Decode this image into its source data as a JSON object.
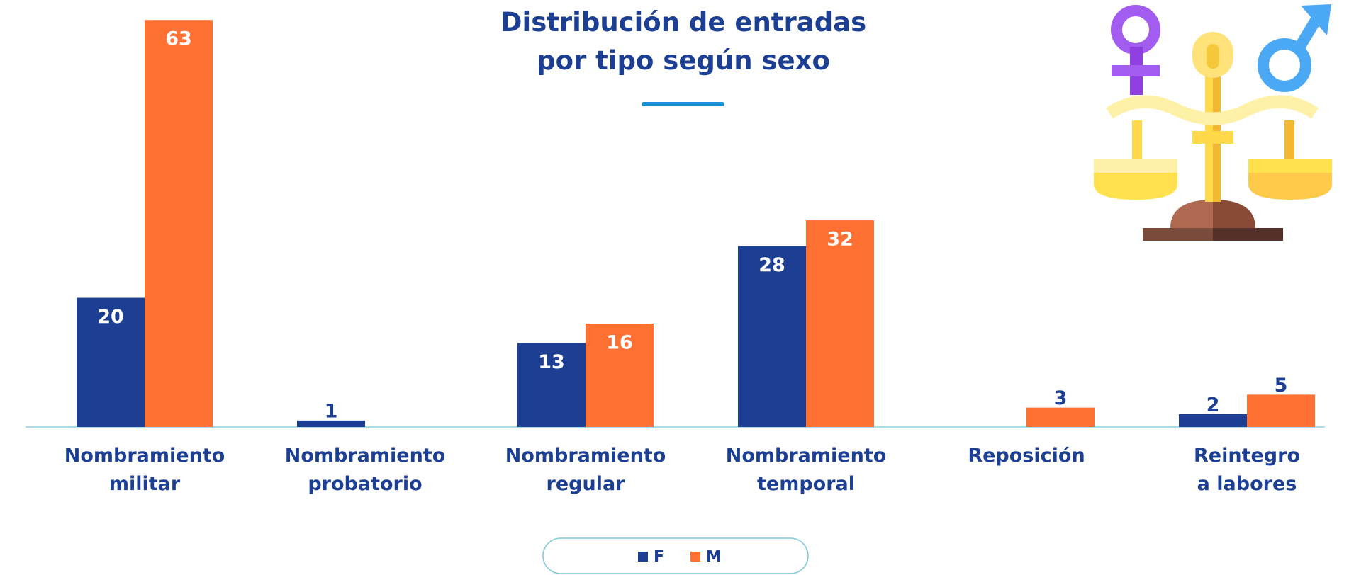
{
  "chart_data": {
    "type": "bar",
    "title": "Distribución de entradas\npor tipo según sexo",
    "categories": [
      "Nombramiento\nmilitar",
      "Nombramiento\nprobatorio",
      "Nombramiento\nregular",
      "Nombramiento\ntemporal",
      "Reposición",
      "Reintegro\na labores"
    ],
    "series": [
      {
        "name": "F",
        "color": "#1c3f94",
        "values": [
          20,
          1,
          13,
          28,
          null,
          2
        ]
      },
      {
        "name": "M",
        "color": "#ff7033",
        "values": [
          63,
          null,
          16,
          32,
          3,
          5
        ]
      }
    ],
    "ylim": [
      0,
      65
    ]
  }
}
